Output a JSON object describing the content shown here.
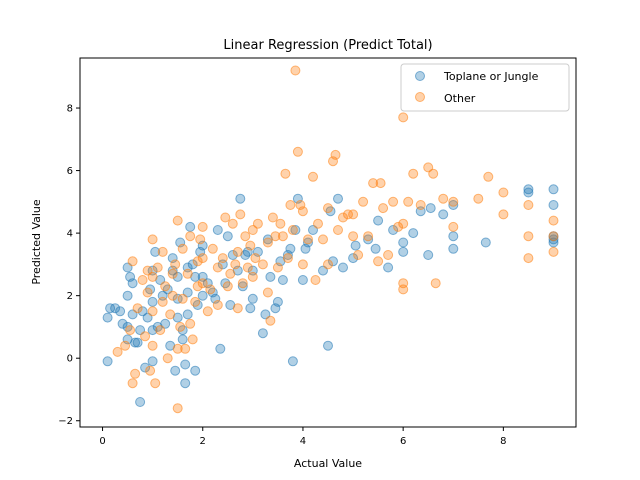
{
  "chart_data": {
    "type": "scatter",
    "title": "Linear Regression (Predict Total)",
    "xlabel": "Actual Value",
    "ylabel": "Predicted Value",
    "xlim": [
      -0.45,
      9.45
    ],
    "ylim": [
      -2.2,
      9.6
    ],
    "xticks": [
      0,
      2,
      4,
      6,
      8
    ],
    "yticks": [
      -2,
      0,
      2,
      4,
      6,
      8
    ],
    "grid": false,
    "legend_position": "top-right",
    "series": [
      {
        "name": "Toplane or Jungle",
        "color": "#1f77b4",
        "points": [
          [
            0.1,
            -0.1
          ],
          [
            0.1,
            1.3
          ],
          [
            0.15,
            1.6
          ],
          [
            0.25,
            1.6
          ],
          [
            0.35,
            1.5
          ],
          [
            0.4,
            1.1
          ],
          [
            0.5,
            0.6
          ],
          [
            0.5,
            1.0
          ],
          [
            0.5,
            2.0
          ],
          [
            0.5,
            2.9
          ],
          [
            0.55,
            2.6
          ],
          [
            0.6,
            1.4
          ],
          [
            0.6,
            2.4
          ],
          [
            0.65,
            0.5
          ],
          [
            0.7,
            0.5
          ],
          [
            0.75,
            -1.4
          ],
          [
            0.75,
            0.9
          ],
          [
            0.8,
            1.5
          ],
          [
            0.85,
            -0.3
          ],
          [
            0.9,
            1.3
          ],
          [
            0.95,
            2.2
          ],
          [
            1.0,
            -0.1
          ],
          [
            1.0,
            0.9
          ],
          [
            1.0,
            1.8
          ],
          [
            1.0,
            2.8
          ],
          [
            1.05,
            3.4
          ],
          [
            1.1,
            1.0
          ],
          [
            1.15,
            2.5
          ],
          [
            1.2,
            2.0
          ],
          [
            1.25,
            1.1
          ],
          [
            1.3,
            2.2
          ],
          [
            1.35,
            0.4
          ],
          [
            1.4,
            2.8
          ],
          [
            1.4,
            3.2
          ],
          [
            1.45,
            -0.4
          ],
          [
            1.5,
            1.3
          ],
          [
            1.5,
            1.9
          ],
          [
            1.5,
            2.6
          ],
          [
            1.55,
            3.7
          ],
          [
            1.6,
            0.6
          ],
          [
            1.6,
            0.9
          ],
          [
            1.65,
            -0.8
          ],
          [
            1.65,
            -0.2
          ],
          [
            1.7,
            1.4
          ],
          [
            1.7,
            2.1
          ],
          [
            1.7,
            2.9
          ],
          [
            1.75,
            4.2
          ],
          [
            1.8,
            3.0
          ],
          [
            1.85,
            -0.4
          ],
          [
            1.85,
            2.6
          ],
          [
            1.9,
            1.7
          ],
          [
            1.95,
            3.4
          ],
          [
            2.0,
            2.0
          ],
          [
            2.0,
            2.6
          ],
          [
            2.0,
            3.6
          ],
          [
            2.1,
            2.4
          ],
          [
            2.2,
            2.1
          ],
          [
            2.25,
            1.9
          ],
          [
            2.3,
            4.1
          ],
          [
            2.35,
            0.3
          ],
          [
            2.4,
            3.0
          ],
          [
            2.45,
            2.4
          ],
          [
            2.5,
            3.9
          ],
          [
            2.55,
            1.7
          ],
          [
            2.6,
            3.3
          ],
          [
            2.7,
            2.8
          ],
          [
            2.75,
            5.1
          ],
          [
            2.8,
            2.3
          ],
          [
            2.85,
            3.3
          ],
          [
            2.9,
            3.4
          ],
          [
            2.95,
            1.6
          ],
          [
            3.0,
            1.9
          ],
          [
            3.0,
            2.8
          ],
          [
            3.1,
            3.4
          ],
          [
            3.2,
            0.8
          ],
          [
            3.25,
            1.4
          ],
          [
            3.3,
            3.8
          ],
          [
            3.35,
            2.6
          ],
          [
            3.45,
            1.6
          ],
          [
            3.5,
            1.8
          ],
          [
            3.55,
            3.1
          ],
          [
            3.6,
            2.5
          ],
          [
            3.7,
            3.3
          ],
          [
            3.75,
            3.5
          ],
          [
            3.8,
            -0.1
          ],
          [
            3.85,
            4.1
          ],
          [
            3.9,
            5.1
          ],
          [
            4.0,
            2.5
          ],
          [
            4.05,
            3.5
          ],
          [
            4.1,
            3.7
          ],
          [
            4.2,
            4.1
          ],
          [
            4.4,
            2.8
          ],
          [
            4.5,
            0.4
          ],
          [
            4.55,
            4.7
          ],
          [
            4.6,
            3.1
          ],
          [
            4.7,
            5.1
          ],
          [
            4.8,
            2.9
          ],
          [
            5.0,
            3.2
          ],
          [
            5.05,
            3.6
          ],
          [
            5.3,
            3.8
          ],
          [
            5.45,
            3.5
          ],
          [
            5.5,
            4.4
          ],
          [
            5.7,
            2.9
          ],
          [
            5.8,
            4.1
          ],
          [
            6.0,
            3.4
          ],
          [
            6.0,
            3.7
          ],
          [
            6.2,
            4.0
          ],
          [
            6.35,
            4.7
          ],
          [
            6.5,
            3.3
          ],
          [
            6.55,
            4.8
          ],
          [
            6.8,
            4.6
          ],
          [
            7.0,
            3.5
          ],
          [
            7.0,
            3.9
          ],
          [
            7.0,
            4.9
          ],
          [
            7.65,
            3.7
          ],
          [
            8.5,
            5.4
          ],
          [
            8.5,
            5.3
          ],
          [
            9.0,
            5.4
          ],
          [
            9.0,
            4.9
          ],
          [
            9.0,
            3.9
          ],
          [
            9.0,
            3.8
          ],
          [
            9.0,
            3.7
          ]
        ]
      },
      {
        "name": "Other",
        "color": "#ff7f0e",
        "points": [
          [
            0.3,
            0.2
          ],
          [
            0.45,
            0.4
          ],
          [
            0.55,
            0.9
          ],
          [
            0.6,
            -0.8
          ],
          [
            0.6,
            3.1
          ],
          [
            0.65,
            -0.5
          ],
          [
            0.7,
            1.6
          ],
          [
            0.8,
            2.5
          ],
          [
            0.85,
            0.7
          ],
          [
            0.9,
            2.1
          ],
          [
            0.9,
            2.8
          ],
          [
            0.95,
            -0.4
          ],
          [
            1.0,
            0.4
          ],
          [
            1.0,
            1.5
          ],
          [
            1.0,
            2.6
          ],
          [
            1.0,
            3.8
          ],
          [
            1.05,
            -0.8
          ],
          [
            1.1,
            2.9
          ],
          [
            1.15,
            0.9
          ],
          [
            1.2,
            1.8
          ],
          [
            1.2,
            3.4
          ],
          [
            1.25,
            2.3
          ],
          [
            1.3,
            0.0
          ],
          [
            1.35,
            1.4
          ],
          [
            1.4,
            2.0
          ],
          [
            1.4,
            2.7
          ],
          [
            1.45,
            3.0
          ],
          [
            1.5,
            -1.6
          ],
          [
            1.5,
            0.3
          ],
          [
            1.5,
            4.4
          ],
          [
            1.55,
            1.0
          ],
          [
            1.6,
            1.9
          ],
          [
            1.6,
            3.5
          ],
          [
            1.65,
            0.3
          ],
          [
            1.7,
            2.7
          ],
          [
            1.75,
            1.1
          ],
          [
            1.75,
            3.9
          ],
          [
            1.8,
            0.6
          ],
          [
            1.85,
            1.8
          ],
          [
            1.9,
            2.3
          ],
          [
            1.9,
            3.1
          ],
          [
            1.95,
            3.8
          ],
          [
            2.0,
            2.4
          ],
          [
            2.0,
            3.2
          ],
          [
            2.0,
            4.2
          ],
          [
            2.1,
            1.5
          ],
          [
            2.15,
            2.2
          ],
          [
            2.2,
            3.5
          ],
          [
            2.3,
            1.7
          ],
          [
            2.3,
            2.9
          ],
          [
            2.4,
            3.2
          ],
          [
            2.45,
            4.5
          ],
          [
            2.5,
            2.3
          ],
          [
            2.55,
            2.7
          ],
          [
            2.6,
            4.3
          ],
          [
            2.65,
            3.0
          ],
          [
            2.7,
            1.6
          ],
          [
            2.7,
            3.4
          ],
          [
            2.75,
            4.6
          ],
          [
            2.8,
            2.4
          ],
          [
            2.85,
            3.9
          ],
          [
            2.9,
            2.9
          ],
          [
            2.95,
            3.6
          ],
          [
            3.0,
            2.6
          ],
          [
            3.0,
            4.1
          ],
          [
            3.05,
            3.2
          ],
          [
            3.1,
            4.3
          ],
          [
            3.2,
            3.0
          ],
          [
            3.3,
            2.1
          ],
          [
            3.3,
            3.7
          ],
          [
            3.35,
            1.2
          ],
          [
            3.4,
            4.5
          ],
          [
            3.45,
            3.9
          ],
          [
            3.5,
            2.9
          ],
          [
            3.55,
            4.3
          ],
          [
            3.6,
            3.9
          ],
          [
            3.65,
            5.9
          ],
          [
            3.7,
            3.2
          ],
          [
            3.75,
            4.9
          ],
          [
            3.8,
            4.1
          ],
          [
            3.85,
            9.2
          ],
          [
            3.9,
            6.6
          ],
          [
            3.95,
            4.9
          ],
          [
            4.0,
            3.0
          ],
          [
            4.0,
            4.7
          ],
          [
            4.1,
            3.8
          ],
          [
            4.2,
            5.8
          ],
          [
            4.25,
            2.5
          ],
          [
            4.3,
            4.3
          ],
          [
            4.4,
            3.8
          ],
          [
            4.5,
            3.0
          ],
          [
            4.5,
            4.8
          ],
          [
            4.6,
            6.3
          ],
          [
            4.65,
            6.5
          ],
          [
            4.7,
            4.1
          ],
          [
            4.8,
            4.5
          ],
          [
            4.9,
            4.6
          ],
          [
            5.0,
            3.9
          ],
          [
            5.0,
            4.6
          ],
          [
            5.1,
            3.3
          ],
          [
            5.2,
            5.0
          ],
          [
            5.3,
            3.9
          ],
          [
            5.4,
            5.6
          ],
          [
            5.5,
            3.1
          ],
          [
            5.55,
            5.6
          ],
          [
            5.6,
            4.8
          ],
          [
            5.7,
            3.3
          ],
          [
            5.8,
            5.0
          ],
          [
            5.9,
            4.2
          ],
          [
            6.0,
            2.2
          ],
          [
            6.0,
            2.4
          ],
          [
            6.0,
            4.3
          ],
          [
            6.0,
            7.7
          ],
          [
            6.1,
            5.0
          ],
          [
            6.2,
            5.9
          ],
          [
            6.35,
            4.9
          ],
          [
            6.5,
            6.1
          ],
          [
            6.6,
            5.9
          ],
          [
            6.65,
            2.4
          ],
          [
            6.8,
            5.1
          ],
          [
            7.0,
            4.2
          ],
          [
            7.0,
            5.0
          ],
          [
            7.5,
            5.1
          ],
          [
            7.7,
            5.8
          ],
          [
            8.0,
            4.6
          ],
          [
            8.0,
            5.3
          ],
          [
            8.5,
            3.2
          ],
          [
            8.5,
            3.9
          ],
          [
            8.5,
            4.9
          ],
          [
            9.0,
            4.4
          ],
          [
            9.0,
            3.9
          ],
          [
            9.0,
            3.4
          ]
        ]
      }
    ]
  }
}
